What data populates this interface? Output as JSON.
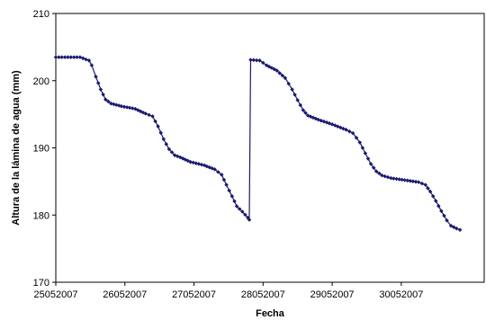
{
  "chart_data": {
    "type": "line",
    "title": "",
    "xlabel": "Fecha",
    "ylabel": "Altura de la lámina de agua (mm)",
    "x_ticks": [
      "25052007",
      "26052007",
      "27052007",
      "28052007",
      "29052007",
      "30052007"
    ],
    "x_tick_days": [
      0,
      1,
      2,
      3,
      4,
      5
    ],
    "xlim": [
      0,
      6.2
    ],
    "ylim": [
      170,
      210
    ],
    "y_ticks": [
      170,
      180,
      190,
      200,
      210
    ],
    "grid": false,
    "legend": "none",
    "marker_color": "#1a1a6e",
    "line_color": "#1a1a6e",
    "keypoints": [
      [
        0.0,
        203.5
      ],
      [
        0.35,
        203.5
      ],
      [
        0.48,
        203.0
      ],
      [
        0.52,
        202.3
      ],
      [
        0.58,
        200.6
      ],
      [
        0.65,
        198.7
      ],
      [
        0.72,
        197.2
      ],
      [
        0.8,
        196.6
      ],
      [
        0.95,
        196.2
      ],
      [
        1.15,
        195.8
      ],
      [
        1.3,
        195.1
      ],
      [
        1.4,
        194.7
      ],
      [
        1.48,
        193.2
      ],
      [
        1.56,
        191.3
      ],
      [
        1.64,
        189.8
      ],
      [
        1.72,
        188.9
      ],
      [
        1.8,
        188.6
      ],
      [
        1.95,
        187.9
      ],
      [
        2.15,
        187.4
      ],
      [
        2.3,
        186.8
      ],
      [
        2.4,
        186.0
      ],
      [
        2.47,
        184.5
      ],
      [
        2.55,
        182.8
      ],
      [
        2.62,
        181.3
      ],
      [
        2.7,
        180.5
      ],
      [
        2.78,
        179.6
      ],
      [
        2.8,
        179.3
      ],
      [
        2.82,
        203.1
      ],
      [
        2.95,
        203.0
      ],
      [
        3.05,
        202.3
      ],
      [
        3.2,
        201.5
      ],
      [
        3.32,
        200.4
      ],
      [
        3.42,
        198.7
      ],
      [
        3.5,
        197.1
      ],
      [
        3.58,
        195.6
      ],
      [
        3.65,
        194.8
      ],
      [
        3.8,
        194.2
      ],
      [
        4.0,
        193.5
      ],
      [
        4.2,
        192.7
      ],
      [
        4.3,
        192.2
      ],
      [
        4.4,
        190.8
      ],
      [
        4.48,
        189.2
      ],
      [
        4.56,
        187.6
      ],
      [
        4.64,
        186.5
      ],
      [
        4.72,
        185.9
      ],
      [
        4.85,
        185.5
      ],
      [
        5.05,
        185.2
      ],
      [
        5.25,
        184.9
      ],
      [
        5.35,
        184.5
      ],
      [
        5.42,
        183.5
      ],
      [
        5.5,
        182.1
      ],
      [
        5.58,
        180.6
      ],
      [
        5.66,
        179.2
      ],
      [
        5.72,
        178.4
      ],
      [
        5.8,
        178.0
      ],
      [
        5.85,
        177.8
      ]
    ]
  }
}
